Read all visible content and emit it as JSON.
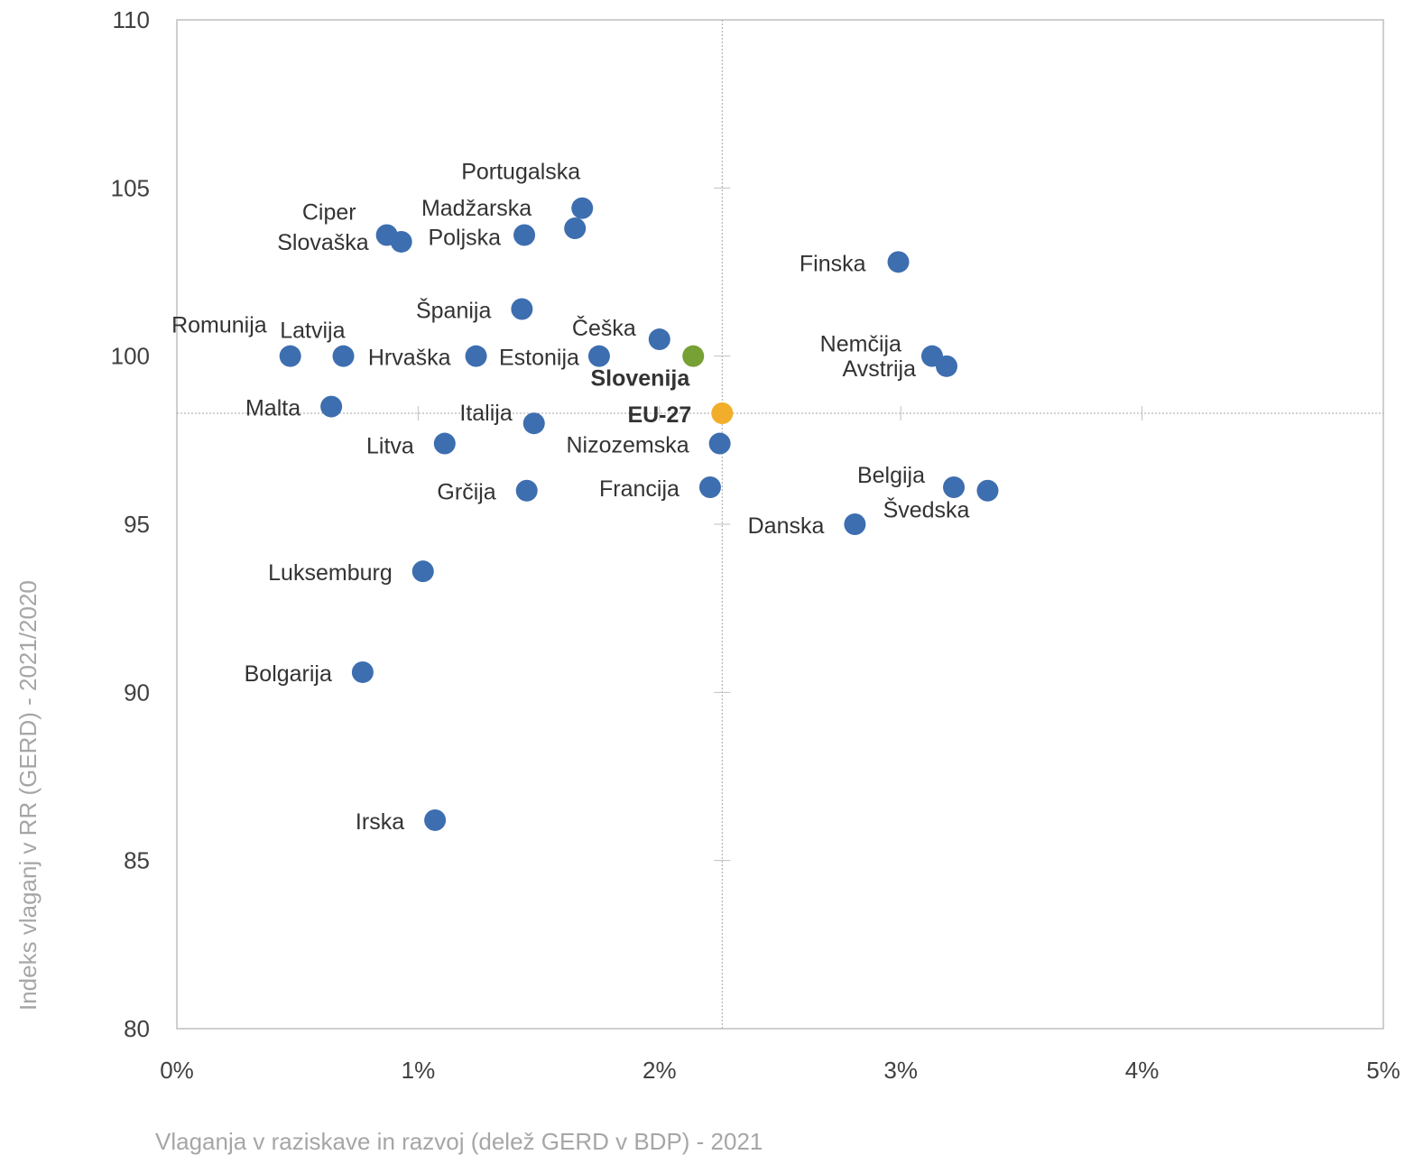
{
  "chart_data": {
    "type": "scatter",
    "xlabel": "Vlaganja v raziskave in razvoj (delež GERD v BDP) - 2021",
    "ylabel": "Indeks vlaganj v RR (GERD) - 2021/2020",
    "xlim": [
      0,
      5
    ],
    "ylim": [
      80,
      110
    ],
    "x_ticks": [
      0,
      1,
      2,
      3,
      4,
      5
    ],
    "x_tick_labels": [
      "0%",
      "1%",
      "2%",
      "3%",
      "4%",
      "5%"
    ],
    "y_ticks": [
      80,
      85,
      90,
      95,
      100,
      105,
      110
    ],
    "y_tick_labels": [
      "80",
      "85",
      "90",
      "95",
      "100",
      "105",
      "110"
    ],
    "reference_lines": {
      "x": 2.26,
      "y": 98.3
    },
    "grid": false,
    "colors": {
      "default": "#3d6eaf",
      "slovenia": "#77a035",
      "eu": "#f2ae2b"
    },
    "points": [
      {
        "label": "Portugalska",
        "x": 1.68,
        "y": 104.4,
        "highlight": "default"
      },
      {
        "label": "Madžarska",
        "x": 1.65,
        "y": 103.8,
        "highlight": "default"
      },
      {
        "label": "Poljska",
        "x": 1.44,
        "y": 103.6,
        "highlight": "default"
      },
      {
        "label": "Ciper",
        "x": 0.87,
        "y": 103.6,
        "highlight": "default"
      },
      {
        "label": "Slovaška",
        "x": 0.93,
        "y": 103.4,
        "highlight": "default"
      },
      {
        "label": "Finska",
        "x": 2.99,
        "y": 102.8,
        "highlight": "default"
      },
      {
        "label": "Španija",
        "x": 1.43,
        "y": 101.4,
        "highlight": "default"
      },
      {
        "label": "Češka",
        "x": 2.0,
        "y": 100.5,
        "highlight": "default"
      },
      {
        "label": "Romunija",
        "x": 0.47,
        "y": 100.0,
        "highlight": "default"
      },
      {
        "label": "Latvija",
        "x": 0.69,
        "y": 100.0,
        "highlight": "default"
      },
      {
        "label": "Hrvaška",
        "x": 1.24,
        "y": 100.0,
        "highlight": "default"
      },
      {
        "label": "Estonija",
        "x": 1.75,
        "y": 100.0,
        "highlight": "default"
      },
      {
        "label": "Slovenija",
        "x": 2.14,
        "y": 100.0,
        "highlight": "slovenia"
      },
      {
        "label": "Nemčija",
        "x": 3.13,
        "y": 100.0,
        "highlight": "default"
      },
      {
        "label": "Avstrija",
        "x": 3.19,
        "y": 99.7,
        "highlight": "default"
      },
      {
        "label": "Malta",
        "x": 0.64,
        "y": 98.5,
        "highlight": "default"
      },
      {
        "label": "EU-27",
        "x": 2.26,
        "y": 98.3,
        "highlight": "eu"
      },
      {
        "label": "Italija",
        "x": 1.48,
        "y": 98.0,
        "highlight": "default"
      },
      {
        "label": "Litva",
        "x": 1.11,
        "y": 97.4,
        "highlight": "default"
      },
      {
        "label": "Nizozemska",
        "x": 2.25,
        "y": 97.4,
        "highlight": "default"
      },
      {
        "label": "Belgija",
        "x": 3.22,
        "y": 96.1,
        "highlight": "default"
      },
      {
        "label": "Švedska",
        "x": 3.36,
        "y": 96.0,
        "highlight": "default"
      },
      {
        "label": "Grčija",
        "x": 1.45,
        "y": 96.0,
        "highlight": "default"
      },
      {
        "label": "Francija",
        "x": 2.21,
        "y": 96.1,
        "highlight": "default"
      },
      {
        "label": "Danska",
        "x": 2.81,
        "y": 95.0,
        "highlight": "default"
      },
      {
        "label": "Luksemburg",
        "x": 1.02,
        "y": 93.6,
        "highlight": "default"
      },
      {
        "label": "Bolgarija",
        "x": 0.77,
        "y": 90.6,
        "highlight": "default"
      },
      {
        "label": "Irska",
        "x": 1.07,
        "y": 86.2,
        "highlight": "default"
      }
    ]
  }
}
